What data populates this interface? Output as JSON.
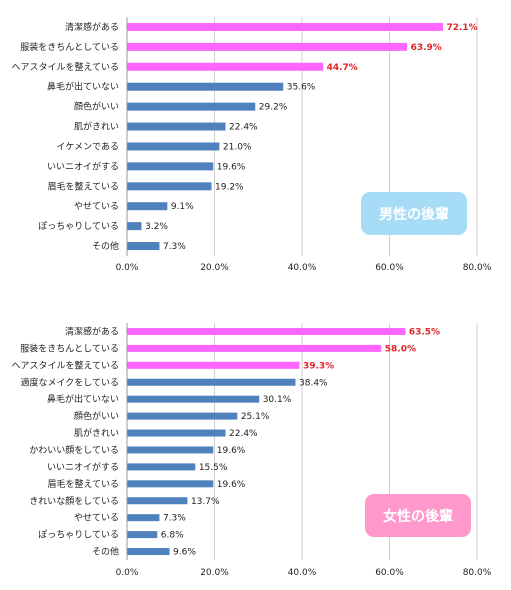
{
  "colors": {
    "bar": "#4f81bd",
    "bar_highlight": "#ff66ff",
    "value_highlight": "#e0262b",
    "grid": "#cfcfcf",
    "badge_male": "#a6dcf5",
    "badge_female": "#ff99cc"
  },
  "chart_data": [
    {
      "type": "bar",
      "orientation": "horizontal",
      "badge": "男性の後輩",
      "categories": [
        "清潔感がある",
        "服装をきちんとしている",
        "ヘアスタイルを整えている",
        "鼻毛が出ていない",
        "顔色がいい",
        "肌がきれい",
        "イケメンである",
        "いいニオイがする",
        "眉毛を整えている",
        "やせている",
        "ぽっちゃりしている",
        "その他"
      ],
      "values": [
        72.1,
        63.9,
        44.7,
        35.6,
        29.2,
        22.4,
        21.0,
        19.6,
        19.2,
        9.1,
        3.2,
        7.3
      ],
      "labels": [
        "72.1%",
        "63.9%",
        "44.7%",
        "35.6%",
        "29.2%",
        "22.4%",
        "21.0%",
        "19.6%",
        "19.2%",
        "9.1%",
        "3.2%",
        "7.3%"
      ],
      "highlight_count": 3,
      "xlim": [
        0,
        80
      ],
      "xticks": [
        "0.0%",
        "20.0%",
        "40.0%",
        "60.0%",
        "80.0%"
      ],
      "grid": true
    },
    {
      "type": "bar",
      "orientation": "horizontal",
      "badge": "女性の後輩",
      "categories": [
        "清潔感がある",
        "服装をきちんとしている",
        "ヘアスタイルを整えている",
        "適度なメイクをしている",
        "鼻毛が出ていない",
        "顔色がいい",
        "肌がきれい",
        "かわいい顔をしている",
        "いいニオイがする",
        "眉毛を整えている",
        "きれいな顔をしている",
        "やせている",
        "ぽっちゃりしている",
        "その他"
      ],
      "values": [
        63.5,
        58.0,
        39.3,
        38.4,
        30.1,
        25.1,
        22.4,
        19.6,
        15.5,
        19.6,
        13.7,
        7.3,
        6.8,
        9.6
      ],
      "labels": [
        "63.5%",
        "58.0%",
        "39.3%",
        "38.4%",
        "30.1%",
        "25.1%",
        "22.4%",
        "19.6%",
        "15.5%",
        "19.6%",
        "13.7%",
        "7.3%",
        "6.8%",
        "9.6%"
      ],
      "highlight_count": 3,
      "xlim": [
        0,
        80
      ],
      "xticks": [
        "0.0%",
        "20.0%",
        "40.0%",
        "60.0%",
        "80.0%"
      ],
      "grid": true
    }
  ]
}
